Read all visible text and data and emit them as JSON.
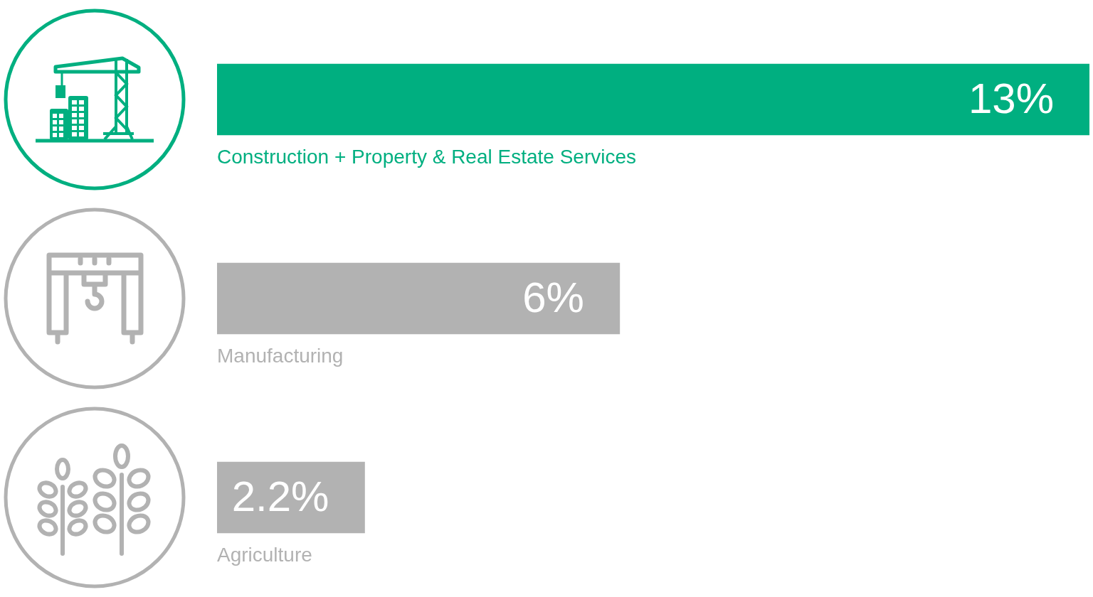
{
  "chart_data": {
    "type": "bar",
    "orientation": "horizontal",
    "categories": [
      "Construction + Property & Real Estate Services",
      "Manufacturing",
      "Agriculture"
    ],
    "values": [
      13,
      6,
      2.2
    ],
    "colors": [
      "#00af80",
      "#b2b2b2",
      "#b2b2b2"
    ],
    "value_labels": [
      "13%",
      "6%",
      "2.2%"
    ],
    "xlim": [
      0,
      13
    ],
    "tick_labels": false,
    "grid": false,
    "legend": false
  }
}
